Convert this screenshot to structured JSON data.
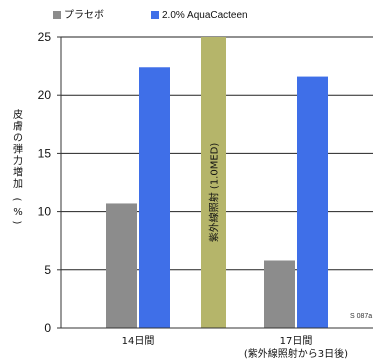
{
  "chart_data": {
    "type": "bar",
    "categories": [
      "14日間",
      "17日間"
    ],
    "category_sublabels": [
      "",
      "(紫外線照射から3日後)"
    ],
    "series": [
      {
        "name": "プラセボ",
        "color": "#8c8c8c",
        "values": [
          10.7,
          5.8
        ]
      },
      {
        "name": "2.0% AquaCacteen",
        "color": "#3f6fe8",
        "values": [
          22.4,
          21.6
        ]
      }
    ],
    "annotation": {
      "text": "紫外線照射 (1.0MED)",
      "color": "#b5b56a",
      "value": 25
    },
    "ylabel": "皮膚の弾力増加 (%)",
    "ylim": [
      0,
      25
    ],
    "yticks": [
      0,
      5,
      10,
      15,
      20,
      25
    ],
    "grid": true,
    "legend_position": "top-left",
    "footnote": "S 087a"
  }
}
